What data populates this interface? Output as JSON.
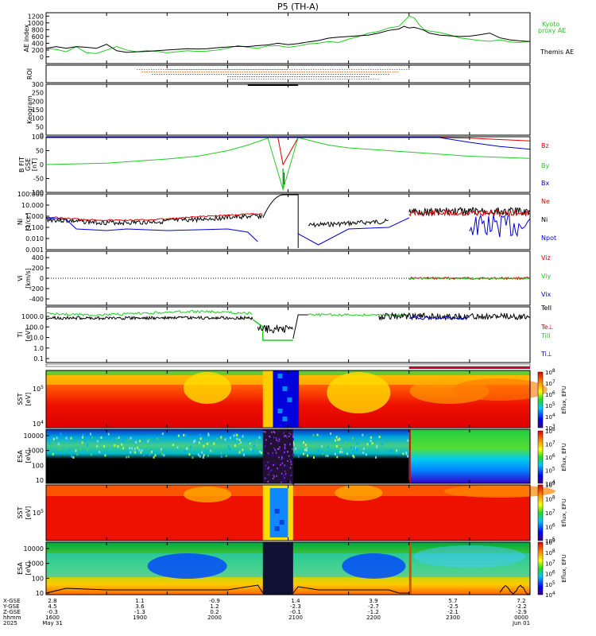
{
  "title": "P5 (TH-A)",
  "colors": {
    "kyoto": "#22cc22",
    "black": "#000000",
    "red": "#dd0000",
    "green": "#22cc22",
    "blue": "#0000dd",
    "cyan": "#00aacc"
  },
  "chart_data": [
    {
      "type": "line",
      "id": "ae",
      "ylabel": "AE index",
      "ylim": [
        -200,
        1300
      ],
      "yticks": [
        "0",
        "200",
        "400",
        "600",
        "800",
        "1000",
        "1200"
      ],
      "legend": [
        "Kyoto",
        "proxy AE",
        "Themis AE"
      ],
      "series": [
        {
          "name": "Kyoto proxy AE",
          "color": "#22cc22",
          "x": [
            1600,
            1610,
            1620,
            1630,
            1640,
            1650,
            1700,
            1710,
            1720,
            1730,
            1740,
            1750,
            1800,
            1810,
            1820,
            1830,
            1840,
            1850,
            1900,
            1910,
            1920,
            1930,
            1940,
            1950,
            2000,
            2010,
            2020,
            2030,
            2040,
            2050,
            2100,
            2110,
            2120,
            2130,
            2140,
            2150,
            2155,
            2200,
            2205,
            2210,
            2215,
            2220,
            2230,
            2240,
            2250,
            2300,
            2310,
            2320,
            2330,
            2340,
            2350,
            2400
          ],
          "y": [
            250,
            220,
            150,
            300,
            120,
            100,
            200,
            300,
            200,
            150,
            180,
            160,
            120,
            150,
            180,
            160,
            170,
            200,
            250,
            330,
            280,
            250,
            320,
            330,
            280,
            320,
            380,
            400,
            450,
            420,
            520,
            600,
            700,
            750,
            850,
            900,
            1050,
            1200,
            1150,
            950,
            800,
            760,
            720,
            650,
            560,
            520,
            480,
            460,
            500,
            440,
            420,
            460
          ]
        },
        {
          "name": "Themis AE",
          "color": "#000000",
          "x": [
            1600,
            1610,
            1620,
            1630,
            1640,
            1650,
            1700,
            1710,
            1720,
            1730,
            1740,
            1750,
            1800,
            1810,
            1820,
            1830,
            1840,
            1850,
            1900,
            1910,
            1920,
            1930,
            1940,
            1950,
            2000,
            2010,
            2020,
            2030,
            2040,
            2050,
            2100,
            2110,
            2120,
            2130,
            2140,
            2150,
            2155,
            2200,
            2205,
            2210,
            2215,
            2220,
            2230,
            2240,
            2250,
            2300,
            2310,
            2320,
            2330,
            2340,
            2350,
            2400
          ],
          "y": [
            250,
            300,
            250,
            300,
            280,
            250,
            370,
            180,
            130,
            150,
            160,
            180,
            200,
            220,
            240,
            230,
            240,
            270,
            290,
            310,
            300,
            330,
            350,
            400,
            360,
            390,
            440,
            480,
            550,
            580,
            600,
            620,
            640,
            700,
            780,
            820,
            900,
            850,
            870,
            830,
            780,
            700,
            640,
            620,
            600,
            610,
            650,
            700,
            560,
            500,
            470,
            450
          ]
        }
      ]
    },
    {
      "type": "scatter",
      "id": "roi",
      "ylabel": "ROI",
      "ylim": [
        0,
        1
      ]
    },
    {
      "type": "line",
      "id": "keogram",
      "ylabel": "Keogram",
      "ylim": [
        0,
        300
      ],
      "yticks": [
        "0",
        "50",
        "100",
        "150",
        "200",
        "250",
        "300"
      ]
    },
    {
      "type": "line",
      "id": "bfield",
      "ylabel": "B FIT [nT]",
      "ylim": [
        -100,
        100
      ],
      "yticks": [
        "100",
        "50",
        "0",
        "-50",
        "-100"
      ],
      "legend": [
        "Bz",
        "By",
        "Bx"
      ],
      "series": [
        {
          "name": "Bz",
          "color": "#dd0000",
          "x": [
            1600,
            1700,
            1800,
            1900,
            1930,
            1950,
            1955,
            2010,
            2100,
            2200,
            2230,
            2300,
            2330,
            2400
          ],
          "y": [
            100,
            100,
            100,
            100,
            100,
            100,
            0,
            100,
            100,
            100,
            100,
            95,
            90,
            85
          ]
        },
        {
          "name": "By",
          "color": "#22cc22",
          "x": [
            1600,
            1700,
            1800,
            1830,
            1900,
            1920,
            1940,
            1955,
            2010,
            2040,
            2100,
            2200,
            2300,
            2400
          ],
          "y": [
            0,
            5,
            20,
            30,
            50,
            70,
            95,
            -90,
            100,
            70,
            60,
            45,
            30,
            22
          ]
        },
        {
          "name": "Bx",
          "color": "#0000dd",
          "x": [
            1600,
            1700,
            1800,
            1850,
            1900,
            2000,
            2100,
            2200,
            2230,
            2300,
            2330,
            2400
          ],
          "y": [
            120,
            100,
            110,
            120,
            120,
            120,
            120,
            120,
            110,
            80,
            65,
            55
          ]
        }
      ]
    },
    {
      "type": "line",
      "id": "density",
      "ylabel": "Ni [1/cc]",
      "yscale": "log",
      "ylim": [
        0.001,
        100
      ],
      "yticks": [
        "100.000",
        "10.000",
        "1.000",
        "0.100",
        "0.010",
        "0.001"
      ],
      "legend": [
        "Ne",
        "Ni",
        "Npot"
      ]
    },
    {
      "type": "line",
      "id": "velocity",
      "ylabel": "Vi [km/s]",
      "ylim": [
        -500,
        500
      ],
      "yticks": [
        "400",
        "200",
        "0",
        "-200",
        "-400"
      ],
      "legend": [
        "Vix",
        "Viy",
        "Viz"
      ]
    },
    {
      "type": "line",
      "id": "temperature",
      "ylabel": "Ti [eV]",
      "yscale": "log",
      "ylim": [
        0.05,
        3000
      ],
      "yticks": [
        "1000.0",
        "100.0",
        "10.0",
        "1.0",
        "0.1"
      ],
      "legend": [
        "TeII",
        "Te⊥",
        "TiII",
        "Ti⊥"
      ]
    },
    {
      "type": "heatmap",
      "id": "sst_i",
      "ylabel": "SST [eV]",
      "colorbar": {
        "label": "Eflux, EFU",
        "ticks": [
          "10^8",
          "10^7",
          "10^6",
          "10^5",
          "10^4",
          "10^3"
        ]
      }
    },
    {
      "type": "heatmap",
      "id": "esa_i",
      "ylabel": "ESA [eV]",
      "yticks": [
        "10000",
        "1000",
        "100",
        "10"
      ],
      "colorbar": {
        "label": "Eflux, EFU",
        "ticks": [
          "10^8",
          "10^7",
          "10^6",
          "10^5",
          "10^4"
        ]
      }
    },
    {
      "type": "heatmap",
      "id": "sst_e",
      "ylabel": "SST [eV]",
      "colorbar": {
        "label": "Eflux, EFU",
        "ticks": [
          "10^9",
          "10^8",
          "10^7",
          "10^6",
          "10^5"
        ]
      }
    },
    {
      "type": "heatmap",
      "id": "esa_e",
      "ylabel": "ESA [eV]",
      "yticks": [
        "10000",
        "1000",
        "100",
        "10"
      ],
      "colorbar": {
        "label": "Eflux, EFU",
        "ticks": [
          "10^9",
          "10^8",
          "10^7",
          "10^6",
          "10^5",
          "10^4"
        ]
      }
    }
  ],
  "ticklabels": {
    "sst_i": [
      "10^5",
      "10^4"
    ],
    "sst_e": [
      "10^5"
    ],
    "ae_legend_label_black": "Themis AE"
  },
  "footer": {
    "row_labels": [
      "X-GSE",
      "Y-GSE",
      "Z-GSE",
      "hhmm",
      "2025"
    ],
    "columns": [
      {
        "x": "2.8",
        "y": "4.5",
        "z": "-0.3",
        "time": "1600",
        "date": "May 31"
      },
      {
        "x": "1.1",
        "y": "3.6",
        "z": "-1.3",
        "time": "1900",
        "date": ""
      },
      {
        "x": "-0.9",
        "y": "1.2",
        "z": "0.2",
        "time": "2000",
        "date": ""
      },
      {
        "x": "1.4",
        "y": "-2.3",
        "z": "-0.1",
        "time": "2100",
        "date": ""
      },
      {
        "x": "3.9",
        "y": "-2.7",
        "z": "-1.2",
        "time": "2200",
        "date": ""
      },
      {
        "x": "5.7",
        "y": "-2.5",
        "z": "-2.1",
        "time": "2300",
        "date": ""
      },
      {
        "x": "7.2",
        "y": "-2.2",
        "z": "-2.9",
        "time": "0000",
        "date": "Jun 01"
      }
    ]
  }
}
